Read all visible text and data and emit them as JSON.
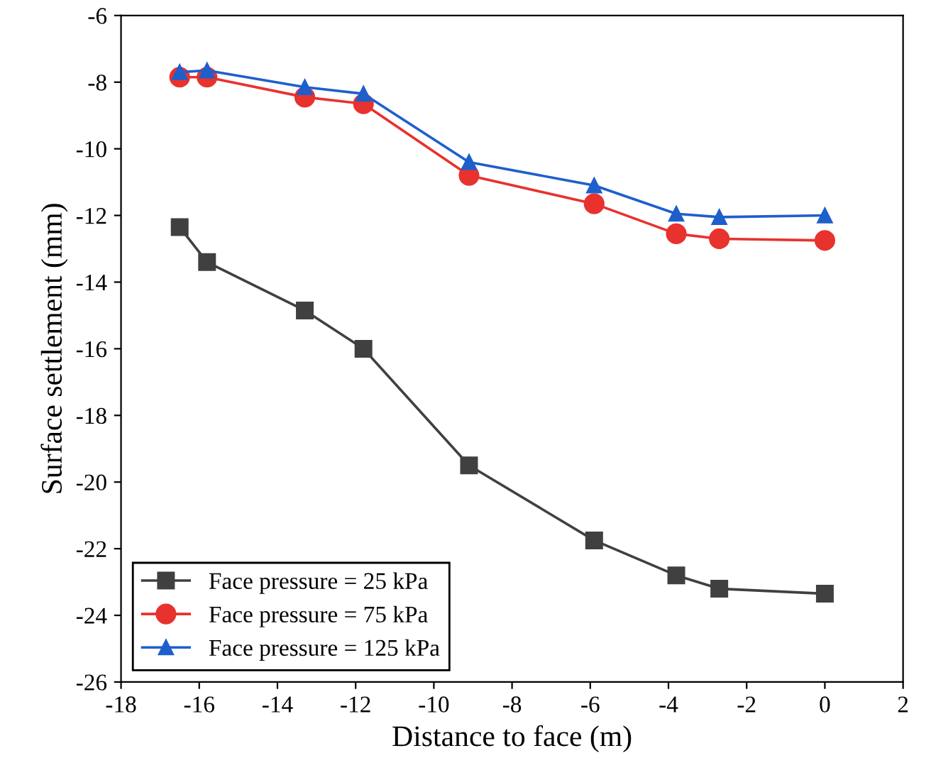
{
  "chart_data": {
    "type": "line",
    "xlabel": "Distance to face (m)",
    "ylabel": "Surface settlement (mm)",
    "x": [
      -16.5,
      -15.8,
      -13.3,
      -11.8,
      -9.1,
      -5.9,
      -3.8,
      -2.7,
      0
    ],
    "series": [
      {
        "name": "Face pressure = 25 kPa",
        "color": "#404040",
        "marker": "square",
        "values": [
          -12.35,
          -13.4,
          -14.85,
          -16.0,
          -19.5,
          -21.75,
          -22.8,
          -23.2,
          -23.35
        ]
      },
      {
        "name": "Face pressure = 75 kPa",
        "color": "#e8322e",
        "marker": "circle",
        "values": [
          -7.85,
          -7.85,
          -8.45,
          -8.65,
          -10.8,
          -11.65,
          -12.55,
          -12.7,
          -12.75
        ]
      },
      {
        "name": "Face pressure = 125 kPa",
        "color": "#1e5fcc",
        "marker": "triangle",
        "values": [
          -7.7,
          -7.65,
          -8.15,
          -8.35,
          -10.4,
          -11.1,
          -11.95,
          -12.05,
          -12.0
        ]
      }
    ],
    "xlim": [
      -18,
      2
    ],
    "xticks": [
      -18,
      -16,
      -14,
      -12,
      -10,
      -8,
      -6,
      -4,
      -2,
      0,
      2
    ],
    "ylim": [
      -26,
      -6
    ],
    "yticks": [
      -26,
      -24,
      -22,
      -20,
      -18,
      -16,
      -14,
      -12,
      -10,
      -8,
      -6
    ],
    "grid": false,
    "legend": "bottom left",
    "line_style": "solid"
  }
}
